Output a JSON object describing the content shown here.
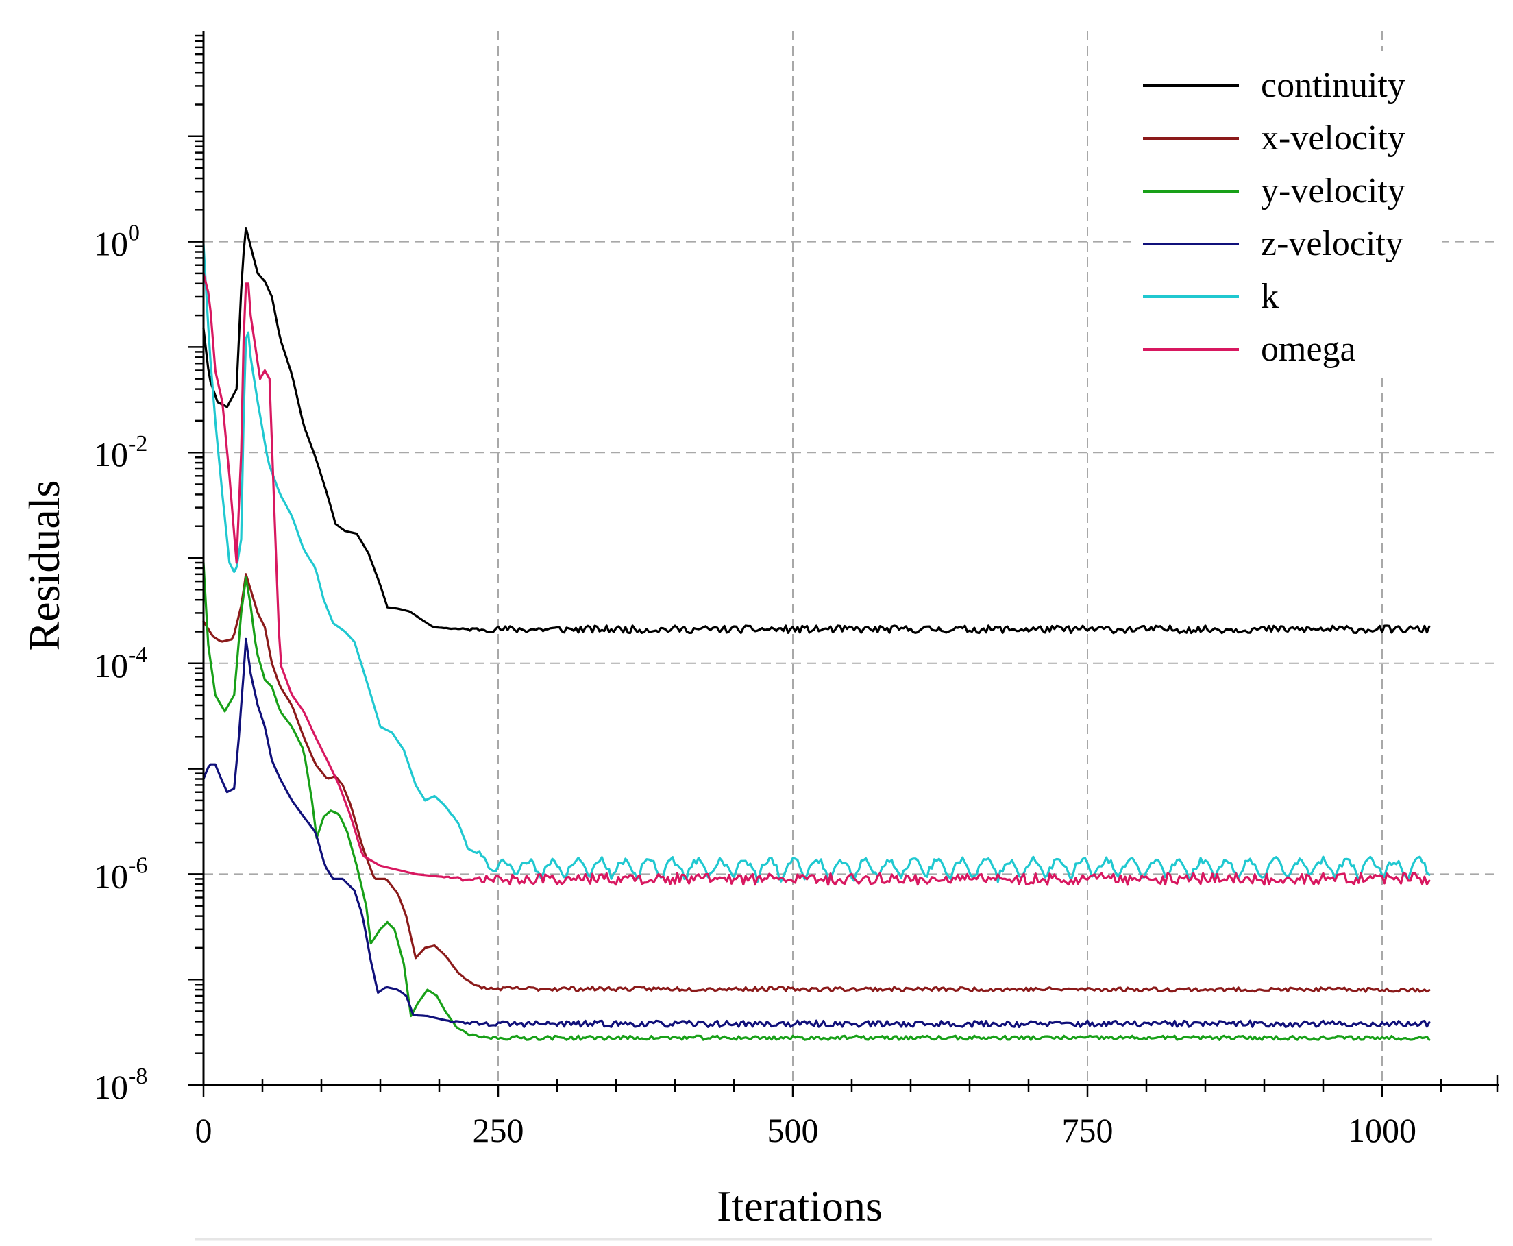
{
  "chart_data": {
    "type": "line",
    "title": "",
    "xlabel": "Iterations",
    "ylabel": "Residuals",
    "yscale": "log",
    "xlim": [
      0,
      1100
    ],
    "ylim": [
      1e-08,
      100
    ],
    "x_ticks": [
      {
        "value": 0,
        "label": "0"
      },
      {
        "value": 250,
        "label": "250"
      },
      {
        "value": 500,
        "label": "500"
      },
      {
        "value": 750,
        "label": "750"
      },
      {
        "value": 1000,
        "label": "1000"
      }
    ],
    "y_ticks": [
      {
        "value": 1,
        "base": "10",
        "exp": "0"
      },
      {
        "value": 0.01,
        "base": "10",
        "exp": "-2"
      },
      {
        "value": 0.0001,
        "base": "10",
        "exp": "-4"
      },
      {
        "value": 1e-06,
        "base": "10",
        "exp": "-6"
      },
      {
        "value": 1e-08,
        "base": "10",
        "exp": "-8"
      }
    ],
    "grid": true,
    "legend_position": "top-right",
    "series": [
      {
        "name": "continuity",
        "color": "#000000",
        "noise": 0.035,
        "seed": 11,
        "points": [
          [
            0,
            0.15
          ],
          [
            5,
            0.05
          ],
          [
            12,
            0.03
          ],
          [
            20,
            0.027
          ],
          [
            28,
            0.04
          ],
          [
            33,
            0.6
          ],
          [
            36,
            1.35
          ],
          [
            40,
            0.9
          ],
          [
            46,
            0.5
          ],
          [
            52,
            0.42
          ],
          [
            58,
            0.3
          ],
          [
            65,
            0.12
          ],
          [
            75,
            0.055
          ],
          [
            85,
            0.018
          ],
          [
            95,
            0.009
          ],
          [
            105,
            0.004
          ],
          [
            112,
            0.0021
          ],
          [
            120,
            0.0018
          ],
          [
            130,
            0.0017
          ],
          [
            140,
            0.0011
          ],
          [
            150,
            0.00055
          ],
          [
            156,
            0.00034
          ],
          [
            165,
            0.00033
          ],
          [
            175,
            0.00031
          ],
          [
            185,
            0.00026
          ],
          [
            195,
            0.00022
          ],
          [
            220,
            0.00021
          ],
          [
            1040,
            0.00021
          ]
        ]
      },
      {
        "name": "x-velocity",
        "color": "#8b1a1a",
        "noise": 0.02,
        "seed": 23,
        "points": [
          [
            0,
            0.00025
          ],
          [
            8,
            0.00018
          ],
          [
            15,
            0.00016
          ],
          [
            25,
            0.00017
          ],
          [
            32,
            0.00035
          ],
          [
            36,
            0.0007
          ],
          [
            40,
            0.0005
          ],
          [
            46,
            0.0003
          ],
          [
            52,
            0.00022
          ],
          [
            58,
            0.0001
          ],
          [
            65,
            6e-05
          ],
          [
            75,
            4e-05
          ],
          [
            85,
            2e-05
          ],
          [
            95,
            1.1e-05
          ],
          [
            105,
            8e-06
          ],
          [
            112,
            8.5e-06
          ],
          [
            118,
            7e-06
          ],
          [
            125,
            4.5e-06
          ],
          [
            135,
            1.8e-06
          ],
          [
            145,
            9e-07
          ],
          [
            155,
            9e-07
          ],
          [
            165,
            6.5e-07
          ],
          [
            172,
            4e-07
          ],
          [
            180,
            1.6e-07
          ],
          [
            188,
            2e-07
          ],
          [
            196,
            2.1e-07
          ],
          [
            205,
            1.7e-07
          ],
          [
            215,
            1.2e-07
          ],
          [
            228,
            9e-08
          ],
          [
            240,
            8.2e-08
          ],
          [
            1040,
            8e-08
          ]
        ]
      },
      {
        "name": "y-velocity",
        "color": "#18a018",
        "noise": 0.02,
        "seed": 37,
        "points": [
          [
            0,
            0.0009
          ],
          [
            4,
            0.00015
          ],
          [
            10,
            5e-05
          ],
          [
            18,
            3.5e-05
          ],
          [
            26,
            5e-05
          ],
          [
            32,
            0.0003
          ],
          [
            36,
            0.00065
          ],
          [
            40,
            0.00035
          ],
          [
            45,
            0.00013
          ],
          [
            52,
            7e-05
          ],
          [
            58,
            6e-05
          ],
          [
            65,
            3.5e-05
          ],
          [
            75,
            2.5e-05
          ],
          [
            85,
            1.5e-05
          ],
          [
            92,
            5e-06
          ],
          [
            96,
            2.2e-06
          ],
          [
            102,
            3.5e-06
          ],
          [
            108,
            4e-06
          ],
          [
            115,
            3.7e-06
          ],
          [
            122,
            2.5e-06
          ],
          [
            130,
            1.2e-06
          ],
          [
            138,
            5e-07
          ],
          [
            142,
            2.2e-07
          ],
          [
            150,
            3e-07
          ],
          [
            156,
            3.5e-07
          ],
          [
            162,
            3e-07
          ],
          [
            170,
            1.4e-07
          ],
          [
            176,
            4.5e-08
          ],
          [
            182,
            6e-08
          ],
          [
            190,
            8e-08
          ],
          [
            198,
            7e-08
          ],
          [
            205,
            5e-08
          ],
          [
            215,
            3.5e-08
          ],
          [
            225,
            3e-08
          ],
          [
            240,
            2.8e-08
          ],
          [
            1040,
            2.8e-08
          ]
        ]
      },
      {
        "name": "z-velocity",
        "color": "#10107a",
        "noise": 0.03,
        "seed": 53,
        "points": [
          [
            0,
            8e-06
          ],
          [
            5,
            1.1e-05
          ],
          [
            10,
            1.1e-05
          ],
          [
            15,
            8e-06
          ],
          [
            20,
            6e-06
          ],
          [
            26,
            6.5e-06
          ],
          [
            30,
            2e-05
          ],
          [
            34,
            8e-05
          ],
          [
            36,
            0.00017
          ],
          [
            40,
            8e-05
          ],
          [
            46,
            4e-05
          ],
          [
            52,
            2.5e-05
          ],
          [
            58,
            1.2e-05
          ],
          [
            65,
            8e-06
          ],
          [
            75,
            5e-06
          ],
          [
            85,
            3.5e-06
          ],
          [
            95,
            2.5e-06
          ],
          [
            103,
            1.2e-06
          ],
          [
            110,
            9e-07
          ],
          [
            118,
            9e-07
          ],
          [
            128,
            7e-07
          ],
          [
            135,
            4e-07
          ],
          [
            142,
            1.5e-07
          ],
          [
            148,
            7.5e-08
          ],
          [
            155,
            8.5e-08
          ],
          [
            165,
            8e-08
          ],
          [
            172,
            7e-08
          ],
          [
            178,
            4.6e-08
          ],
          [
            190,
            4.5e-08
          ],
          [
            210,
            4e-08
          ],
          [
            240,
            3.8e-08
          ],
          [
            1040,
            3.8e-08
          ]
        ]
      },
      {
        "name": "k",
        "color": "#20c8d0",
        "noise": 0.035,
        "wave": 0.18,
        "seed": 71,
        "points": [
          [
            0,
            0.95
          ],
          [
            5,
            0.1
          ],
          [
            10,
            0.02
          ],
          [
            16,
            0.004
          ],
          [
            22,
            0.0009
          ],
          [
            27,
            0.0007
          ],
          [
            32,
            0.0015
          ],
          [
            35,
            0.08
          ],
          [
            37,
            0.18
          ],
          [
            40,
            0.08
          ],
          [
            46,
            0.03
          ],
          [
            55,
            0.008
          ],
          [
            65,
            0.004
          ],
          [
            75,
            0.0025
          ],
          [
            85,
            0.0012
          ],
          [
            95,
            0.0008
          ],
          [
            102,
            0.0004
          ],
          [
            110,
            0.00024
          ],
          [
            120,
            0.0002
          ],
          [
            128,
            0.00016
          ],
          [
            135,
            9e-05
          ],
          [
            142,
            5e-05
          ],
          [
            150,
            2.5e-05
          ],
          [
            160,
            2.2e-05
          ],
          [
            170,
            1.5e-05
          ],
          [
            180,
            7e-06
          ],
          [
            188,
            5e-06
          ],
          [
            196,
            5.5e-06
          ],
          [
            205,
            4.5e-06
          ],
          [
            215,
            3e-06
          ],
          [
            225,
            1.8e-06
          ],
          [
            240,
            1.2e-06
          ],
          [
            260,
            1.1e-06
          ],
          [
            1040,
            1.1e-06
          ]
        ]
      },
      {
        "name": "omega",
        "color": "#d81860",
        "noise": 0.055,
        "seed": 89,
        "points": [
          [
            0,
            0.5
          ],
          [
            5,
            0.3
          ],
          [
            10,
            0.06
          ],
          [
            16,
            0.03
          ],
          [
            22,
            0.006
          ],
          [
            28,
            0.0009
          ],
          [
            32,
            0.01
          ],
          [
            35,
            0.4
          ],
          [
            38,
            0.4
          ],
          [
            40,
            0.2
          ],
          [
            44,
            0.1
          ],
          [
            48,
            0.05
          ],
          [
            52,
            0.06
          ],
          [
            56,
            0.05
          ],
          [
            60,
            0.003
          ],
          [
            65,
            0.0001
          ],
          [
            75,
            5e-05
          ],
          [
            85,
            3.5e-05
          ],
          [
            95,
            2e-05
          ],
          [
            105,
            1.2e-05
          ],
          [
            115,
            7e-06
          ],
          [
            125,
            3.5e-06
          ],
          [
            135,
            1.5e-06
          ],
          [
            150,
            1.2e-06
          ],
          [
            180,
            1e-06
          ],
          [
            220,
            9e-07
          ],
          [
            1040,
            9e-07
          ]
        ]
      }
    ]
  }
}
